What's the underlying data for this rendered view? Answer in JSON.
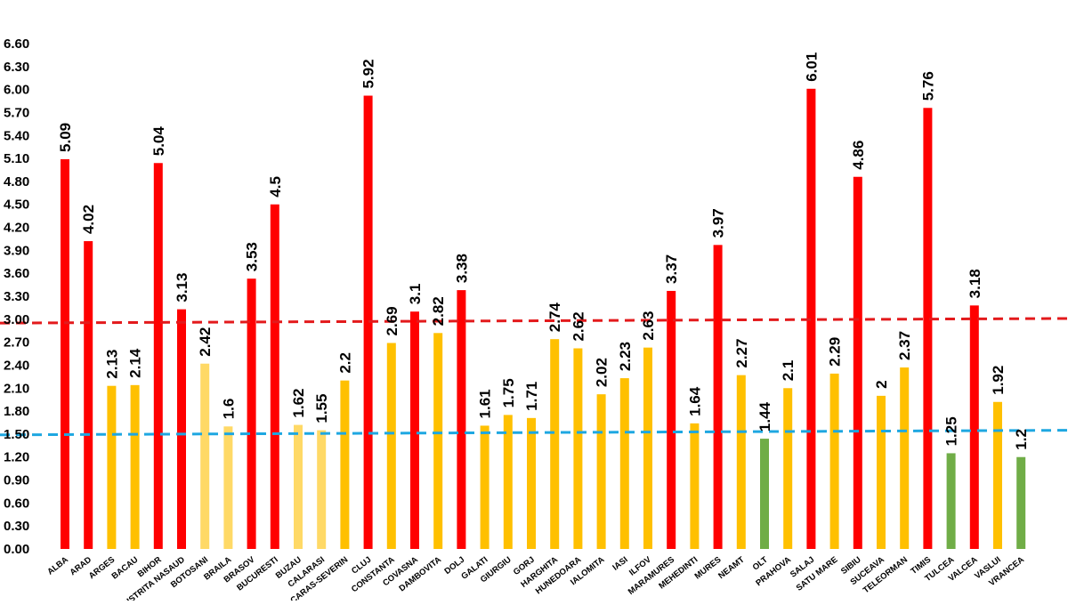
{
  "chart_data": {
    "type": "bar",
    "title": "",
    "xlabel": "",
    "ylabel": "",
    "ylim": [
      0,
      6.6
    ],
    "yticks": [
      "0.00",
      "0.30",
      "0.60",
      "0.90",
      "1.20",
      "1.50",
      "1.80",
      "2.10",
      "2.40",
      "2.70",
      "3.00",
      "3.30",
      "3.60",
      "3.90",
      "4.20",
      "4.50",
      "4.80",
      "5.10",
      "5.40",
      "5.70",
      "6.00",
      "6.30",
      "6.60"
    ],
    "grid": false,
    "legend": "none",
    "categories": [
      "ALBA",
      "ARAD",
      "ARGES",
      "BACAU",
      "BIHOR",
      "BISTRITA NASAUD",
      "BOTOSANI",
      "BRAILA",
      "BRASOV",
      "BUCURESTI",
      "BUZAU",
      "CALARASI",
      "CARAS-SEVERIN",
      "CLUJ",
      "CONSTANTA",
      "COVASNA",
      "DAMBOVITA",
      "DOLJ",
      "GALATI",
      "GIURGIU",
      "GORJ",
      "HARGHITA",
      "HUNEDOARA",
      "IALOMITA",
      "IASI",
      "ILFOV",
      "MARAMURES",
      "MEHEDINTI",
      "MURES",
      "NEAMT",
      "OLT",
      "PRAHOVA",
      "SALAJ",
      "SATU MARE",
      "SIBIU",
      "SUCEAVA",
      "TELEORMAN",
      "TIMIS",
      "TULCEA",
      "VALCEA",
      "VASLUI",
      "VRANCEA"
    ],
    "values": [
      5.09,
      4.02,
      2.13,
      2.14,
      5.04,
      3.13,
      2.42,
      1.6,
      3.53,
      4.5,
      1.62,
      1.55,
      2.2,
      5.92,
      2.69,
      3.1,
      2.82,
      3.38,
      1.61,
      1.75,
      1.71,
      2.74,
      2.62,
      2.02,
      2.23,
      2.63,
      3.37,
      1.64,
      3.97,
      2.27,
      1.44,
      2.1,
      6.01,
      2.29,
      4.86,
      2.0,
      2.37,
      5.76,
      1.25,
      3.18,
      1.92,
      1.2
    ],
    "value_labels": [
      "5.09",
      "4.02",
      "2.13",
      "2.14",
      "5.04",
      "3.13",
      "2.42",
      "1.6",
      "3.53",
      "4.5",
      "1.62",
      "1.55",
      "2.2",
      "5.92",
      "2.69",
      "3.1",
      "2.82",
      "3.38",
      "1.61",
      "1.75",
      "1.71",
      "2.74",
      "2.62",
      "2.02",
      "2.23",
      "2.63",
      "3.37",
      "1.64",
      "3.97",
      "2.27",
      "1.44",
      "2.1",
      "6.01",
      "2.29",
      "4.86",
      "2",
      "2.37",
      "5.76",
      "1.25",
      "3.18",
      "1.92",
      "1.2"
    ],
    "bar_colors": {
      "red": "#ff0000",
      "yellow": "#ffc000",
      "light_yellow": "#ffd966",
      "green": "#70ad47"
    },
    "bar_color_keys": [
      "red",
      "red",
      "yellow",
      "yellow",
      "red",
      "red",
      "light_yellow",
      "light_yellow",
      "red",
      "red",
      "light_yellow",
      "light_yellow",
      "yellow",
      "red",
      "yellow",
      "red",
      "yellow",
      "red",
      "yellow",
      "yellow",
      "yellow",
      "yellow",
      "yellow",
      "yellow",
      "yellow",
      "yellow",
      "red",
      "yellow",
      "red",
      "yellow",
      "green",
      "yellow",
      "red",
      "yellow",
      "red",
      "yellow",
      "yellow",
      "red",
      "green",
      "red",
      "yellow",
      "green"
    ],
    "reference_lines": [
      {
        "y_start": 2.95,
        "y_end": 3.01,
        "style": "dashed",
        "color": "#e31a1c"
      },
      {
        "y_start": 1.49,
        "y_end": 1.55,
        "style": "dashed",
        "color": "#1ea7e1"
      }
    ]
  }
}
